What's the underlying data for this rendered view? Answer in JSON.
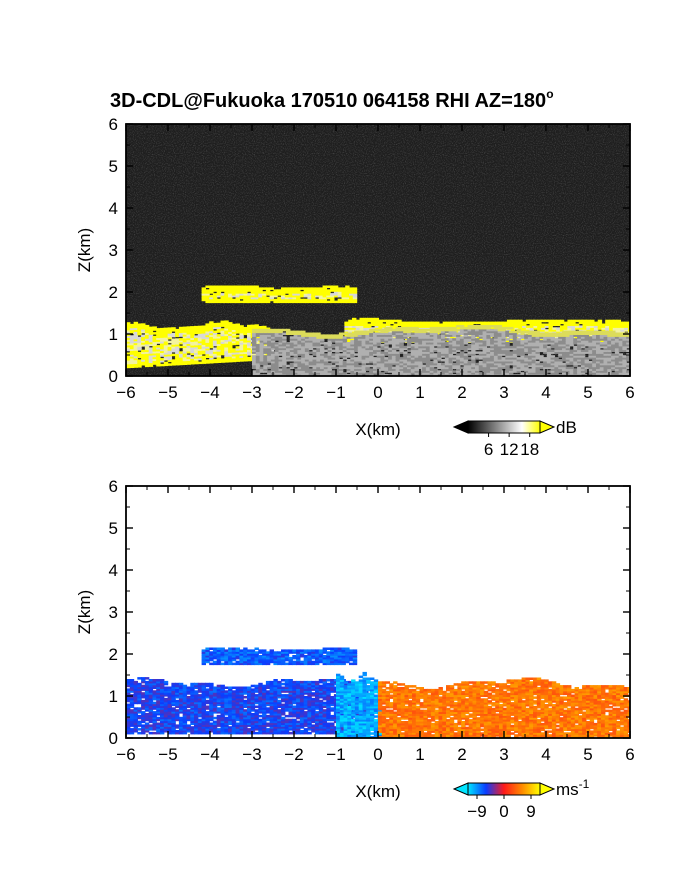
{
  "figure": {
    "title": "3D-CDL@Fukuoka 170510 064158 RHI AZ=180",
    "title_degree": "o"
  },
  "chart_data": [
    {
      "type": "heatmap",
      "quantity": "SNR",
      "xlabel": "X(km)",
      "ylabel": "Z(km)",
      "xlim": [
        -6,
        6
      ],
      "ylim": [
        0,
        6
      ],
      "xticks": [
        -6,
        -5,
        -4,
        -3,
        -2,
        -1,
        0,
        1,
        2,
        3,
        4,
        5,
        6
      ],
      "yticks": [
        0,
        1,
        2,
        3,
        4,
        5,
        6
      ],
      "colorbar": {
        "unit": "dB",
        "ticks": [
          "6",
          "12",
          "18"
        ],
        "range": [
          0,
          21
        ],
        "colors": [
          "#000000",
          "#555555",
          "#aaaaaa",
          "#ffffff",
          "#ffff00"
        ]
      },
      "background_color": "#1e1e1e",
      "features": [
        {
          "feature": "upper layer",
          "x_range": [
            -4.2,
            -0.6
          ],
          "z_range": [
            1.75,
            2.1
          ],
          "color": "#ffff00"
        },
        {
          "feature": "main cloud base layer",
          "x_range": [
            -0.8,
            6.0
          ],
          "z_range": [
            0.8,
            1.3
          ],
          "color": "#ffff00"
        },
        {
          "feature": "lower-left layer",
          "x_range": [
            -6.0,
            -2.5
          ],
          "z_range": [
            0.2,
            1.2
          ],
          "color": "#ffff00"
        },
        {
          "feature": "sub-cloud echo",
          "x_range": [
            -3.0,
            6.0
          ],
          "z_range": [
            0.0,
            1.1
          ],
          "color": "#9a9a9a"
        }
      ]
    },
    {
      "type": "heatmap",
      "quantity": "radial velocity",
      "xlabel": "X(km)",
      "ylabel": "Z(km)",
      "xlim": [
        -6,
        6
      ],
      "ylim": [
        0,
        6
      ],
      "xticks": [
        -6,
        -5,
        -4,
        -3,
        -2,
        -1,
        0,
        1,
        2,
        3,
        4,
        5,
        6
      ],
      "yticks": [
        0,
        1,
        2,
        3,
        4,
        5,
        6
      ],
      "colorbar": {
        "unit": "ms",
        "unit_exponent": "-1",
        "ticks": [
          "-9",
          "0",
          "9"
        ],
        "range": [
          -12,
          12
        ],
        "colors": [
          "#00e5ff",
          "#0a3cff",
          "#ff1a1a",
          "#ff8a00",
          "#ffff00"
        ]
      },
      "background_color": "#ffffff",
      "features": [
        {
          "feature": "upper layer",
          "x_range": [
            -4.2,
            -0.6
          ],
          "z_range": [
            1.75,
            2.1
          ],
          "velocity_ms": -7
        },
        {
          "feature": "left lower layer",
          "x_range": [
            -6.0,
            -0.3
          ],
          "z_range": [
            0.1,
            1.3
          ],
          "velocity_ms": -6
        },
        {
          "feature": "near-origin receding core",
          "x_range": [
            -1.0,
            0.0
          ],
          "z_range": [
            0.0,
            1.4
          ],
          "velocity_ms": -10
        },
        {
          "feature": "right approaching layer",
          "x_range": [
            0.0,
            6.0
          ],
          "z_range": [
            0.0,
            1.3
          ],
          "velocity_ms": 5
        }
      ]
    }
  ]
}
